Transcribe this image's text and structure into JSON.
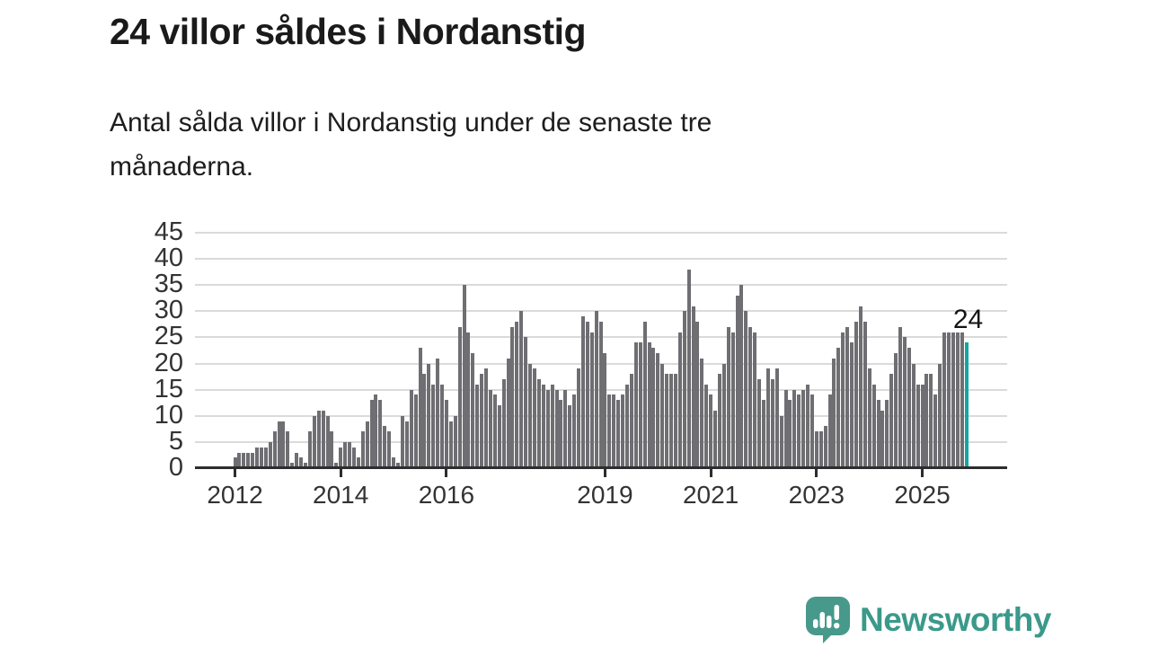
{
  "page": {
    "title": "24 villor såldes i Nordanstig",
    "subtitle_line1": "Antal sålda villor i Nordanstig under de senaste tre",
    "subtitle_line2": "månaderna."
  },
  "branding": {
    "logo_text": "Newsworthy",
    "logo_icon": "newsworthy-speech-bubble-bar-chart-icon"
  },
  "colors": {
    "bar_gray": "#6e6e73",
    "bar_highlight_teal": "#12a7a3",
    "axis": "#2d2d2d",
    "gridline": "#dadada",
    "tick_label": "#333333",
    "title_text": "#1a1a1a",
    "annotation_text": "#141414",
    "brand_teal": "#47998b",
    "brand_text_teal": "#3a998a",
    "logo_glyph_white": "#ffffff"
  },
  "chart_data": {
    "type": "bar",
    "title": "24 villor såldes i Nordanstig",
    "subtitle": "Antal sålda villor i Nordanstig under de senaste tre månaderna.",
    "x_unit": "month",
    "start_month": "2012-01",
    "end_month": "2025-11",
    "ylim": [
      0,
      45
    ],
    "grid": "horizontal",
    "y_ticks": [
      0,
      5,
      10,
      15,
      20,
      25,
      30,
      35,
      40,
      45
    ],
    "x_tick_years": [
      2012,
      2014,
      2016,
      2019,
      2021,
      2023,
      2025
    ],
    "highlight_last_bar": true,
    "last_value_label": "24",
    "values": [
      2,
      3,
      3,
      3,
      3,
      4,
      4,
      4,
      5,
      7,
      9,
      9,
      7,
      1,
      3,
      2,
      1,
      7,
      10,
      11,
      11,
      10,
      7,
      1,
      4,
      5,
      5,
      4,
      2,
      7,
      9,
      13,
      14,
      13,
      8,
      7,
      2,
      1,
      10,
      9,
      15,
      14,
      23,
      18,
      20,
      16,
      21,
      16,
      13,
      9,
      10,
      27,
      35,
      26,
      22,
      16,
      18,
      19,
      15,
      14,
      12,
      17,
      21,
      27,
      28,
      30,
      25,
      20,
      19,
      17,
      16,
      15,
      16,
      15,
      13,
      15,
      12,
      14,
      19,
      29,
      28,
      26,
      30,
      28,
      22,
      14,
      14,
      13,
      14,
      16,
      18,
      24,
      24,
      28,
      24,
      23,
      22,
      20,
      18,
      18,
      18,
      26,
      30,
      38,
      31,
      28,
      21,
      16,
      14,
      11,
      18,
      20,
      27,
      26,
      33,
      35,
      30,
      27,
      26,
      17,
      13,
      19,
      17,
      19,
      10,
      15,
      13,
      15,
      14,
      15,
      16,
      14,
      7,
      7,
      8,
      14,
      21,
      23,
      26,
      27,
      24,
      28,
      31,
      28,
      19,
      16,
      13,
      11,
      13,
      18,
      22,
      27,
      25,
      23,
      20,
      16,
      16,
      18,
      18,
      14,
      20,
      26,
      26,
      26,
      26,
      26,
      24
    ]
  }
}
